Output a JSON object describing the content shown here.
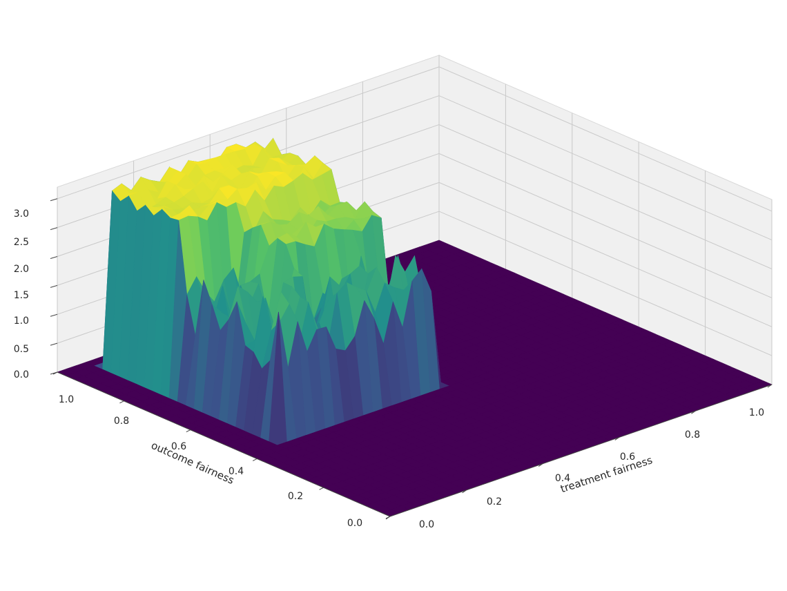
{
  "chart_data": {
    "type": "surface",
    "title": "",
    "colormap": "viridis",
    "colormap_stops": [
      "#440154",
      "#3b528b",
      "#21918c",
      "#5ec962",
      "#fde725"
    ],
    "pane_color": "#f0f0f0",
    "grid": true,
    "xlabel": "treatment fairness",
    "ylabel": "outcome fairness",
    "zlabel": "",
    "xlim": [
      0.0,
      1.0
    ],
    "ylim": [
      0.0,
      1.0
    ],
    "zlim": [
      0.0,
      3.2
    ],
    "x_ticks": [
      "0.0",
      "0.2",
      "0.4",
      "0.6",
      "0.8",
      "1.0"
    ],
    "y_ticks": [
      "0.0",
      "0.2",
      "0.4",
      "0.6",
      "0.8",
      "1.0"
    ],
    "z_ticks": [
      "0.0",
      "0.5",
      "1.0",
      "1.5",
      "2.0",
      "2.5",
      "3.0"
    ],
    "surface_description_values": {
      "plateau_height_max": 3.1,
      "ridge_a": {
        "x_range": [
          0.1,
          0.5
        ],
        "y_range": [
          0.75,
          0.95
        ],
        "height": 3.0
      },
      "ridge_b": {
        "x_range": [
          0.25,
          0.5
        ],
        "y_range": [
          0.6,
          0.75
        ],
        "height": 2.6
      },
      "trench_height": 1.0,
      "floor_height": 0.0
    }
  }
}
